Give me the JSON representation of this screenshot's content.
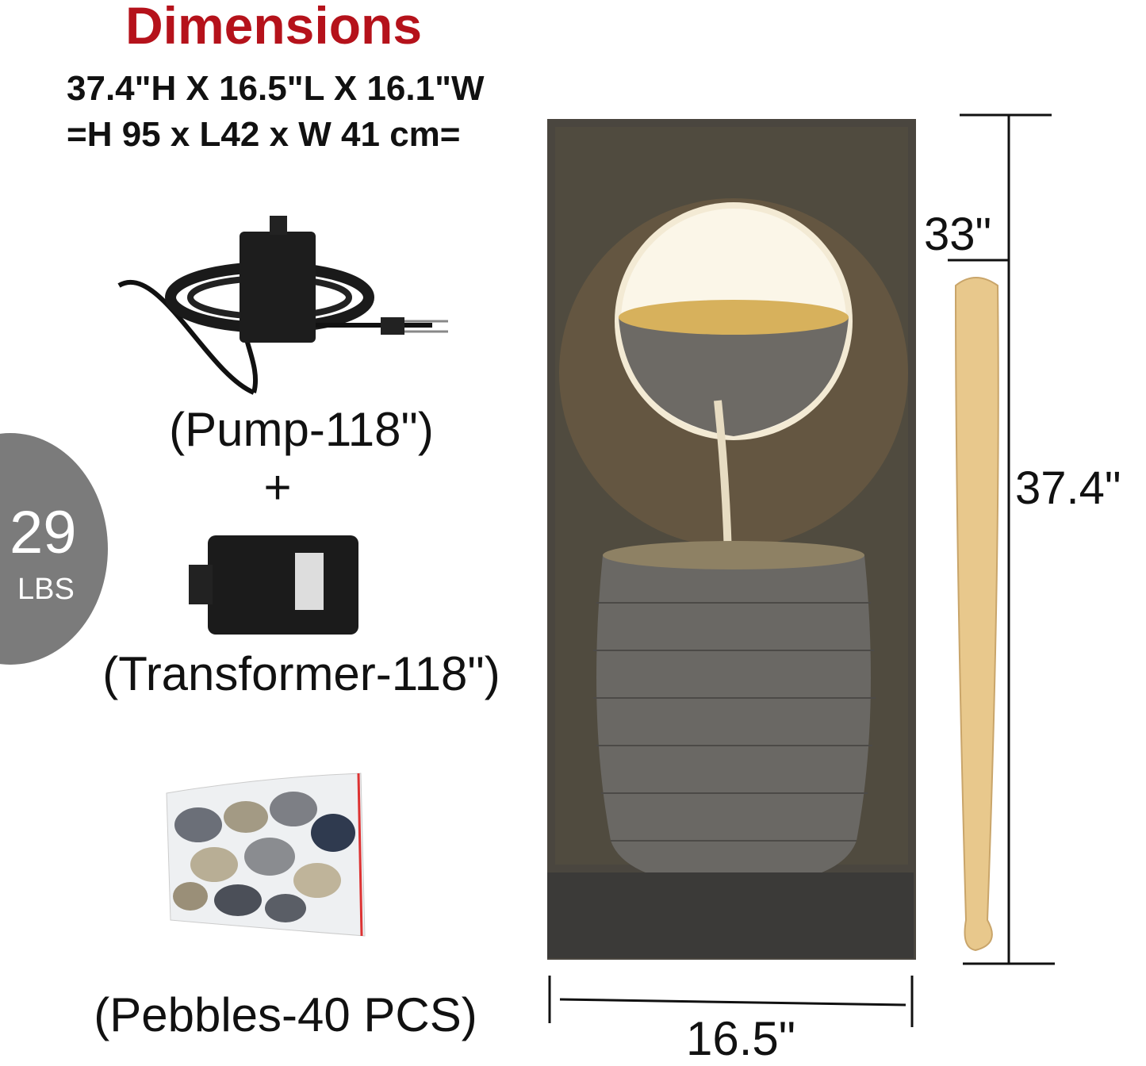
{
  "heading": "Dimensions",
  "specs": {
    "imperial": "37.4\"H X 16.5\"L X 16.1\"W",
    "metric": "=H 95 x L42 x W 41 cm="
  },
  "weight": {
    "value": "29",
    "unit": "LBS",
    "color": "#7b7b7b"
  },
  "accessories": {
    "pump": "(Pump-118\")",
    "plus": "+",
    "transformer": "(Transformer-118\")",
    "pebbles": "(Pebbles-40 PCS)"
  },
  "measurements": {
    "bat_height": "33\"",
    "total_height": "37.4\"",
    "width": "16.5\""
  },
  "colors": {
    "heading": "#b5121b",
    "bat": "#e8c88c",
    "stone": "#4a463f"
  }
}
